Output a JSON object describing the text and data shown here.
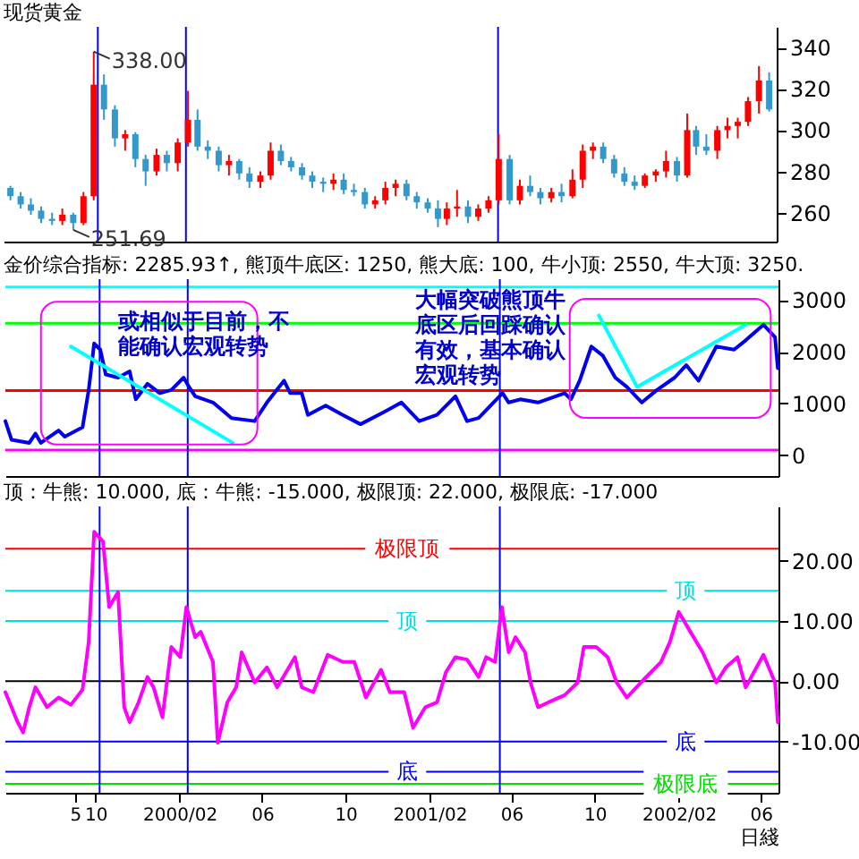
{
  "chart_data": [
    {
      "type": "candlestick",
      "title": "现货黄金",
      "x": [
        "1999-06-01",
        "1999-06-16",
        "1999-07-01",
        "1999-07-16",
        "1999-08-01",
        "1999-08-16",
        "1999-09-01",
        "1999-09-16",
        "1999-10-01",
        "1999-10-16",
        "1999-11-01",
        "1999-11-16",
        "1999-12-01",
        "1999-12-16",
        "2000-01-01",
        "2000-01-16",
        "2000-02-01",
        "2000-02-16",
        "2000-03-01",
        "2000-03-16",
        "2000-04-01",
        "2000-04-16",
        "2000-05-01",
        "2000-05-16",
        "2000-06-01",
        "2000-06-16",
        "2000-07-01",
        "2000-07-16",
        "2000-08-01",
        "2000-08-16",
        "2000-09-01",
        "2000-09-16",
        "2000-10-01",
        "2000-10-16",
        "2000-11-01",
        "2000-11-16",
        "2000-12-01",
        "2000-12-16",
        "2001-01-01",
        "2001-01-16",
        "2001-02-01",
        "2001-02-16",
        "2001-03-01",
        "2001-03-16",
        "2001-04-01",
        "2001-04-16",
        "2001-05-01",
        "2001-05-16",
        "2001-06-01",
        "2001-06-16",
        "2001-07-01",
        "2001-07-16",
        "2001-08-01",
        "2001-08-16",
        "2001-09-01",
        "2001-09-16",
        "2001-10-01",
        "2001-10-16",
        "2001-11-01",
        "2001-11-16",
        "2001-12-01",
        "2001-12-16",
        "2002-01-01",
        "2002-01-16",
        "2002-02-01",
        "2002-02-16",
        "2002-03-01",
        "2002-03-16",
        "2002-04-01",
        "2002-04-16",
        "2002-05-01",
        "2002-05-16",
        "2002-06-01",
        "2002-06-16"
      ],
      "ohlc": [
        [
          272,
          273,
          266,
          268
        ],
        [
          268,
          270,
          262,
          264
        ],
        [
          264,
          267,
          259,
          261
        ],
        [
          261,
          263,
          255,
          257
        ],
        [
          257,
          260,
          254,
          256
        ],
        [
          256,
          262,
          254,
          259
        ],
        [
          259,
          260,
          251.69,
          255
        ],
        [
          255,
          270,
          254,
          268
        ],
        [
          268,
          338,
          266,
          322
        ],
        [
          322,
          327,
          305,
          310
        ],
        [
          310,
          312,
          292,
          296
        ],
        [
          296,
          300,
          290,
          298
        ],
        [
          298,
          299,
          282,
          286
        ],
        [
          286,
          288,
          273,
          280
        ],
        [
          280,
          291,
          278,
          288
        ],
        [
          288,
          290,
          280,
          284
        ],
        [
          284,
          296,
          280,
          294
        ],
        [
          294,
          319,
          292,
          305
        ],
        [
          305,
          310,
          290,
          292
        ],
        [
          292,
          295,
          286,
          290
        ],
        [
          290,
          292,
          280,
          283
        ],
        [
          283,
          288,
          278,
          285
        ],
        [
          285,
          286,
          276,
          279
        ],
        [
          279,
          282,
          272,
          275
        ],
        [
          275,
          280,
          272,
          278
        ],
        [
          278,
          294,
          276,
          290
        ],
        [
          290,
          293,
          283,
          285
        ],
        [
          285,
          287,
          280,
          282
        ],
        [
          282,
          284,
          276,
          278
        ],
        [
          278,
          280,
          272,
          275
        ],
        [
          275,
          277,
          270,
          274
        ],
        [
          274,
          279,
          271,
          276
        ],
        [
          276,
          279,
          269,
          271
        ],
        [
          271,
          274,
          268,
          270
        ],
        [
          270,
          272,
          262,
          264
        ],
        [
          264,
          268,
          262,
          266
        ],
        [
          266,
          275,
          264,
          272
        ],
        [
          272,
          276,
          268,
          274
        ],
        [
          274,
          276,
          266,
          268
        ],
        [
          268,
          270,
          262,
          265
        ],
        [
          265,
          267,
          260,
          262
        ],
        [
          262,
          266,
          253,
          257
        ],
        [
          257,
          265,
          254,
          262
        ],
        [
          262,
          271,
          258,
          263
        ],
        [
          263,
          266,
          255,
          258
        ],
        [
          258,
          264,
          256,
          262
        ],
        [
          262,
          268,
          260,
          266
        ],
        [
          266,
          298,
          264,
          286
        ],
        [
          286,
          288,
          264,
          266
        ],
        [
          266,
          276,
          264,
          273
        ],
        [
          273,
          278,
          268,
          270
        ],
        [
          270,
          272,
          264,
          267
        ],
        [
          267,
          272,
          265,
          270
        ],
        [
          270,
          274,
          265,
          268
        ],
        [
          268,
          281,
          267,
          276
        ],
        [
          276,
          293,
          272,
          290
        ],
        [
          290,
          294,
          286,
          292
        ],
        [
          292,
          294,
          284,
          286
        ],
        [
          286,
          288,
          277,
          279
        ],
        [
          279,
          282,
          273,
          275
        ],
        [
          275,
          278,
          271,
          273
        ],
        [
          273,
          279,
          272,
          278
        ],
        [
          278,
          281,
          275,
          280
        ],
        [
          280,
          290,
          277,
          285
        ],
        [
          285,
          287,
          275,
          278
        ],
        [
          278,
          308,
          277,
          300
        ],
        [
          300,
          302,
          288,
          292
        ],
        [
          292,
          298,
          288,
          290
        ],
        [
          290,
          302,
          286,
          300
        ],
        [
          300,
          306,
          296,
          302
        ],
        [
          302,
          306,
          296,
          304
        ],
        [
          304,
          316,
          302,
          314
        ],
        [
          314,
          331,
          308,
          324
        ],
        [
          324,
          328,
          309,
          310
        ]
      ],
      "colors": [
        "#3399cc",
        "#3399cc",
        "#3399cc",
        "#3399cc",
        "#3399cc",
        "#ff0000",
        "#3399cc",
        "#ff0000",
        "#ff0000",
        "#3399cc",
        "#3399cc",
        "#ff0000",
        "#3399cc",
        "#3399cc",
        "#ff0000",
        "#3399cc",
        "#ff0000",
        "#ff0000",
        "#3399cc",
        "#3399cc",
        "#3399cc",
        "#ff0000",
        "#3399cc",
        "#3399cc",
        "#ff0000",
        "#ff0000",
        "#3399cc",
        "#3399cc",
        "#3399cc",
        "#3399cc",
        "#3399cc",
        "#ff0000",
        "#3399cc",
        "#3399cc",
        "#3399cc",
        "#ff0000",
        "#ff0000",
        "#ff0000",
        "#3399cc",
        "#3399cc",
        "#3399cc",
        "#3399cc",
        "#ff0000",
        "#ff0000",
        "#3399cc",
        "#ff0000",
        "#ff0000",
        "#ff0000",
        "#3399cc",
        "#ff0000",
        "#3399cc",
        "#3399cc",
        "#ff0000",
        "#3399cc",
        "#ff0000",
        "#ff0000",
        "#ff0000",
        "#3399cc",
        "#3399cc",
        "#3399cc",
        "#3399cc",
        "#ff0000",
        "#ff0000",
        "#ff0000",
        "#3399cc",
        "#ff0000",
        "#3399cc",
        "#3399cc",
        "#ff0000",
        "#ff0000",
        "#ff0000",
        "#ff0000",
        "#ff0000",
        "#3399cc"
      ],
      "xlim": [
        "1999-05-22",
        "2002-06-27"
      ],
      "ylim": [
        246,
        350
      ],
      "yticks": [
        260,
        280,
        300,
        320,
        340
      ],
      "tick_labels": "y",
      "ref_lines": [
        {
          "axis": "x",
          "value": "1999-10-07",
          "color": "#0000ff"
        },
        {
          "axis": "x",
          "value": "2000-02-13",
          "color": "#0000ff"
        },
        {
          "axis": "x",
          "value": "2001-05-15",
          "color": "#0000ff"
        }
      ],
      "annotations": [
        {
          "text": "338.00",
          "x": "1999-10-01",
          "y": 338
        },
        {
          "text": "251.69",
          "x": "1999-09-01",
          "y": 251.69
        }
      ]
    },
    {
      "type": "line",
      "title": "金价综合指标: 2285.93↑, 熊顶牛底区: 1250, 熊大底: 100, 牛小顶: 2550, 牛大顶: 3250.",
      "x": [
        "1999-05-22",
        "1999-05-31",
        "1999-06-26",
        "1999-07-05",
        "1999-07-13",
        "1999-08-08",
        "1999-08-17",
        "1999-09-12",
        "1999-09-21",
        "1999-09-29",
        "1999-10-08",
        "1999-10-16",
        "1999-11-03",
        "1999-11-20",
        "1999-11-29",
        "1999-12-16",
        "2000-01-03",
        "2000-01-20",
        "2000-02-07",
        "2000-02-15",
        "2000-02-24",
        "2000-03-21",
        "2000-04-17",
        "2000-05-21",
        "2000-06-08",
        "2000-07-03",
        "2000-07-12",
        "2000-07-29",
        "2000-08-07",
        "2000-09-02",
        "2000-09-27",
        "2000-10-23",
        "2000-11-27",
        "2000-12-22",
        "2001-01-17",
        "2001-02-12",
        "2001-03-11",
        "2001-03-28",
        "2001-04-14",
        "2001-05-19",
        "2001-05-28",
        "2001-06-14",
        "2001-07-10",
        "2001-08-18",
        "2001-08-27",
        "2001-09-09",
        "2001-09-26",
        "2001-10-13",
        "2001-10-31",
        "2001-11-17",
        "2001-12-09",
        "2001-12-31",
        "2002-01-26",
        "2002-02-12",
        "2002-03-02",
        "2002-03-28",
        "2002-04-23",
        "2002-05-10",
        "2002-06-05",
        "2002-06-22",
        "2002-06-26"
      ],
      "series": [
        {
          "color": "#0000ee",
          "values": [
            660,
            300,
            240,
            420,
            240,
            480,
            360,
            540,
            1260,
            2160,
            2040,
            1560,
            1500,
            1620,
            1080,
            1380,
            1200,
            1260,
            1500,
            1320,
            1140,
            1020,
            720,
            660,
            1020,
            1440,
            1200,
            1200,
            780,
            960,
            780,
            600,
            840,
            1020,
            660,
            780,
            1140,
            660,
            720,
            1200,
            1020,
            1080,
            1020,
            1200,
            1080,
            1440,
            2100,
            1920,
            1500,
            1320,
            1020,
            1260,
            1500,
            1740,
            1440,
            2100,
            2040,
            2220,
            2520,
            2280,
            1680
          ]
        },
        {
          "type": "line",
          "color": "#00ffff",
          "x": [
            "1999-08-26",
            "2000-04-19"
          ],
          "values": [
            2100,
            240
          ]
        },
        {
          "type": "line",
          "color": "#00ffff",
          "x": [
            "2001-10-07",
            "2001-12-02",
            "2002-05-10"
          ],
          "values": [
            2700,
            1320,
            2520
          ]
        }
      ],
      "xlim": [
        "1999-05-22",
        "2002-06-27"
      ],
      "ylim": [
        -400,
        3400
      ],
      "yticks": [
        0,
        1000,
        2000,
        3000
      ],
      "tick_labels": "y",
      "ref_lines": [
        {
          "axis": "y",
          "value": 3250,
          "color": "#00ffff"
        },
        {
          "axis": "y",
          "value": 2550,
          "color": "#00ff00"
        },
        {
          "axis": "y",
          "value": 1250,
          "color": "#ff0000"
        },
        {
          "axis": "y",
          "value": 100,
          "color": "#ff00ff"
        },
        {
          "axis": "x",
          "value": "1999-10-07",
          "color": "#0000ff"
        },
        {
          "axis": "x",
          "value": "2000-02-13",
          "color": "#0000ff"
        },
        {
          "axis": "x",
          "value": "2001-05-15",
          "color": "#0000ff"
        }
      ],
      "annotations": [
        "或相似于目前，不能确认宏观转势",
        "大幅突破熊顶牛底区后回踩确认有效，基本确认宏观转势"
      ]
    },
    {
      "type": "line",
      "title": "顶：牛熊: 10.000, 底：牛熊: -15.000, 极限顶: 22.000, 极限底: -17.000",
      "xlabel": "日綫",
      "x": [
        "1999-05-22",
        "1999-06-09",
        "1999-06-17",
        "1999-06-26",
        "1999-07-05",
        "1999-07-22",
        "1999-08-08",
        "1999-08-26",
        "1999-09-12",
        "1999-09-21",
        "1999-09-29",
        "1999-10-12",
        "1999-10-21",
        "1999-11-03",
        "1999-11-12",
        "1999-11-20",
        "1999-12-03",
        "1999-12-16",
        "1999-12-25",
        "2000-01-07",
        "2000-01-20",
        "2000-02-02",
        "2000-02-11",
        "2000-02-24",
        "2000-03-03",
        "2000-03-21",
        "2000-03-28",
        "2000-04-11",
        "2000-04-24",
        "2000-05-02",
        "2000-05-21",
        "2000-06-08",
        "2000-06-23",
        "2000-07-19",
        "2000-07-29",
        "2000-08-15",
        "2000-09-05",
        "2000-09-27",
        "2000-10-14",
        "2000-10-31",
        "2000-11-22",
        "2000-12-05",
        "2000-12-26",
        "2001-01-08",
        "2001-01-26",
        "2001-02-12",
        "2001-02-25",
        "2001-03-11",
        "2001-03-28",
        "2001-04-14",
        "2001-04-25",
        "2001-05-08",
        "2001-05-18",
        "2001-05-28",
        "2001-06-07",
        "2001-06-21",
        "2001-06-29",
        "2001-07-10",
        "2001-07-25",
        "2001-08-18",
        "2001-09-06",
        "2001-09-15",
        "2001-10-03",
        "2001-10-20",
        "2001-11-02",
        "2001-11-17",
        "2001-12-11",
        "2002-01-06",
        "2002-01-19",
        "2002-02-01",
        "2002-02-18",
        "2002-03-08",
        "2002-03-28",
        "2002-04-11",
        "2002-04-28",
        "2002-05-10",
        "2002-06-05",
        "2002-06-22",
        "2002-06-26"
      ],
      "series": [
        {
          "color": "#ff00ff",
          "values": [
            -1.8,
            -6.8,
            -8.5,
            -4.3,
            -1,
            -4.3,
            -2.7,
            -3.9,
            -1.4,
            6.5,
            24.8,
            23.2,
            12.3,
            14.8,
            -4.3,
            -6.8,
            -3.5,
            0.7,
            -1,
            -6,
            5.7,
            4,
            12.3,
            7.3,
            8.2,
            3.2,
            -10.2,
            -3.5,
            -1,
            4.8,
            -0.2,
            2.3,
            -1,
            4,
            -1,
            -1.8,
            4.4,
            3.2,
            3.2,
            -2.7,
            1.9,
            -1.8,
            -1.8,
            -7.7,
            -4.3,
            -3.5,
            1.5,
            4,
            3.6,
            0.7,
            4,
            3.2,
            12.3,
            4.8,
            7.3,
            4.8,
            -0.2,
            -4.3,
            -3.5,
            -2.3,
            -0.2,
            5.7,
            5.7,
            4,
            -0.2,
            -2.7,
            0.2,
            3.2,
            6.5,
            11.5,
            8.2,
            4.8,
            -0.2,
            2.3,
            4,
            -1,
            4.4,
            -0.2,
            -6.8
          ]
        }
      ],
      "xlim": [
        "1999-05-22",
        "2002-06-27"
      ],
      "ylim": [
        -18.5,
        29
      ],
      "xticks": [
        {
          "value": "1999-09-01",
          "label": "5"
        },
        {
          "value": "1999-10-01",
          "label": "10"
        },
        {
          "value": "2000-02-01",
          "label": "2000/02"
        },
        {
          "value": "2000-06-01",
          "label": "06"
        },
        {
          "value": "2000-10-01",
          "label": "10"
        },
        {
          "value": "2001-02-01",
          "label": "2001/02"
        },
        {
          "value": "2001-06-01",
          "label": "06"
        },
        {
          "value": "2001-10-01",
          "label": "10"
        },
        {
          "value": "2002-02-01",
          "label": "2002/02"
        },
        {
          "value": "2002-06-01",
          "label": "06"
        }
      ],
      "yticks": [
        {
          "value": -10,
          "label": "-10.00"
        },
        {
          "value": 0,
          "label": "0.00"
        },
        {
          "value": 10,
          "label": "10.00"
        },
        {
          "value": 20,
          "label": "20.00"
        }
      ],
      "ref_lines": [
        {
          "axis": "y",
          "value": 22,
          "label": "极限顶",
          "color": "#ff0000"
        },
        {
          "axis": "y",
          "value": 15,
          "label": "顶",
          "color": "#00dddd"
        },
        {
          "axis": "y",
          "value": 10,
          "label": "顶",
          "color": "#00dddd"
        },
        {
          "axis": "y",
          "value": -10,
          "label": "底",
          "color": "#0000ff"
        },
        {
          "axis": "y",
          "value": -15,
          "label": "底",
          "color": "#0000ff"
        },
        {
          "axis": "y",
          "value": -17,
          "label": "极限底",
          "color": "#00dd00"
        },
        {
          "axis": "y",
          "value": 0,
          "color": "#000000"
        },
        {
          "axis": "x",
          "value": "1999-10-07",
          "color": "#0000ff"
        },
        {
          "axis": "x",
          "value": "2000-02-13",
          "color": "#0000ff"
        },
        {
          "axis": "x",
          "value": "2001-05-15",
          "color": "#0000ff"
        }
      ]
    }
  ]
}
